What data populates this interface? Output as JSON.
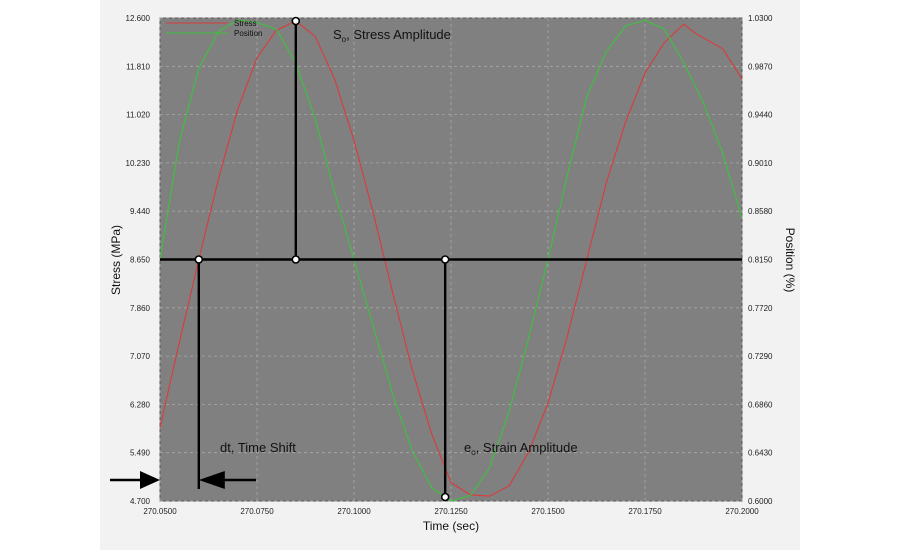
{
  "chart_data": {
    "type": "line",
    "xlabel": "Time (sec)",
    "ylabel_left": "Stress (MPa)",
    "ylabel_right": "Position (%)",
    "xlim": [
      270.05,
      270.2
    ],
    "ylim_left": [
      4.7,
      12.6
    ],
    "ylim_right": [
      0.6,
      1.03
    ],
    "x_ticks": [
      "270.0500",
      "270.0750",
      "270.1000",
      "270.1250",
      "270.1500",
      "270.1750",
      "270.2000"
    ],
    "y_ticks_left": [
      "4.700",
      "5.490",
      "6.280",
      "7.070",
      "7.860",
      "8.650",
      "9.440",
      "10.230",
      "11.020",
      "11.810",
      "12.600"
    ],
    "y_ticks_right": [
      "0.6000",
      "0.6430",
      "0.6860",
      "0.7290",
      "0.7720",
      "0.8150",
      "0.8580",
      "0.9010",
      "0.9440",
      "0.9870",
      "1.0300"
    ],
    "grid": true,
    "legend_position": "top-left",
    "series": [
      {
        "name": "Stress",
        "axis": "left",
        "color": "#d93b3b",
        "x": [
          270.05,
          270.055,
          270.06,
          270.065,
          270.07,
          270.075,
          270.08,
          270.085,
          270.09,
          270.095,
          270.1,
          270.105,
          270.11,
          270.115,
          270.12,
          270.125,
          270.13,
          270.135,
          270.14,
          270.145,
          270.15,
          270.155,
          270.16,
          270.165,
          270.17,
          270.175,
          270.18,
          270.185,
          270.188,
          270.195,
          270.2
        ],
        "values": [
          5.9,
          7.3,
          8.65,
          9.95,
          11.1,
          11.95,
          12.4,
          12.55,
          12.3,
          11.6,
          10.6,
          9.4,
          8.1,
          6.85,
          5.8,
          5.0,
          4.8,
          4.78,
          4.95,
          5.5,
          6.3,
          7.4,
          8.65,
          9.9,
          10.9,
          11.7,
          12.2,
          12.5,
          12.35,
          12.1,
          11.6
        ]
      },
      {
        "name": "Position",
        "axis": "right",
        "color": "#3cc23c",
        "x": [
          270.05,
          270.055,
          270.06,
          270.065,
          270.07,
          270.075,
          270.08,
          270.085,
          270.09,
          270.095,
          270.1,
          270.105,
          270.11,
          270.115,
          270.12,
          270.125,
          270.13,
          270.135,
          270.14,
          270.145,
          270.15,
          270.155,
          270.16,
          270.165,
          270.17,
          270.175,
          270.18,
          270.185,
          270.19,
          270.195,
          270.2
        ],
        "values": [
          0.815,
          0.92,
          0.985,
          1.018,
          1.028,
          1.026,
          1.02,
          0.99,
          0.94,
          0.875,
          0.815,
          0.755,
          0.695,
          0.645,
          0.612,
          0.6,
          0.605,
          0.63,
          0.68,
          0.745,
          0.815,
          0.89,
          0.96,
          1.0,
          1.023,
          1.028,
          1.02,
          0.99,
          0.955,
          0.91,
          0.852
        ]
      }
    ],
    "annotations": [
      {
        "id": "stress_amp",
        "label_main": "S",
        "label_sub": "o",
        "label_rest": ", Stress Amplitude"
      },
      {
        "id": "strain_amp",
        "label_main": "e",
        "label_sub": "o",
        "label_rest": ", Strain Amplitude"
      },
      {
        "id": "time_shift",
        "label": "dt, Time Shift"
      }
    ],
    "overlay": {
      "baseline_stress": 8.65,
      "crossing_x": 270.06,
      "stress_peak_x": 270.085,
      "stress_peak_y": 12.6,
      "strain_min_x": 270.1235,
      "strain_min_y": 4.7
    }
  }
}
